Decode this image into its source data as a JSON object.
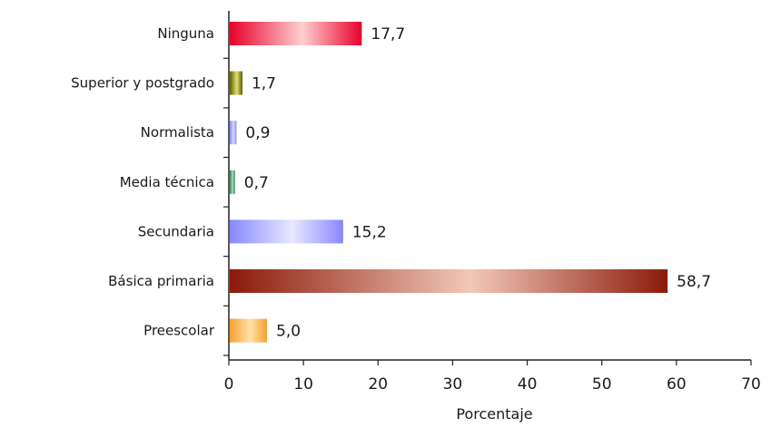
{
  "chart_data": {
    "type": "bar",
    "orientation": "horizontal",
    "title": "",
    "xlabel": "Porcentaje",
    "ylabel": "",
    "xlim": [
      0,
      70
    ],
    "x_ticks": [
      "0",
      "10",
      "20",
      "30",
      "40",
      "50",
      "60",
      "70"
    ],
    "grid": false,
    "legend": "none",
    "categories": [
      "Ninguna",
      "Superior y postgrado",
      "Normalista",
      "Media técnica",
      "Secundaria",
      "Básica primaria",
      "Preescolar"
    ],
    "values": [
      17.7,
      1.7,
      0.9,
      0.7,
      15.2,
      58.7,
      5.0
    ],
    "value_labels": [
      "17,7",
      "1,7",
      "0,9",
      "0,7",
      "15,2",
      "58,7",
      "5,0"
    ],
    "bar_colors": [
      {
        "edge": "#e8002a",
        "mid": "#ffd0d0"
      },
      {
        "edge": "#5c5c00",
        "mid": "#e0e070"
      },
      {
        "edge": "#8888ee",
        "mid": "#d8d8ff"
      },
      {
        "edge": "#2e7d52",
        "mid": "#a8e0c0"
      },
      {
        "edge": "#8888ff",
        "mid": "#e8e8ff"
      },
      {
        "edge": "#8b1a0a",
        "mid": "#f2c8b8"
      },
      {
        "edge": "#f7a030",
        "mid": "#ffe2a8"
      }
    ]
  }
}
